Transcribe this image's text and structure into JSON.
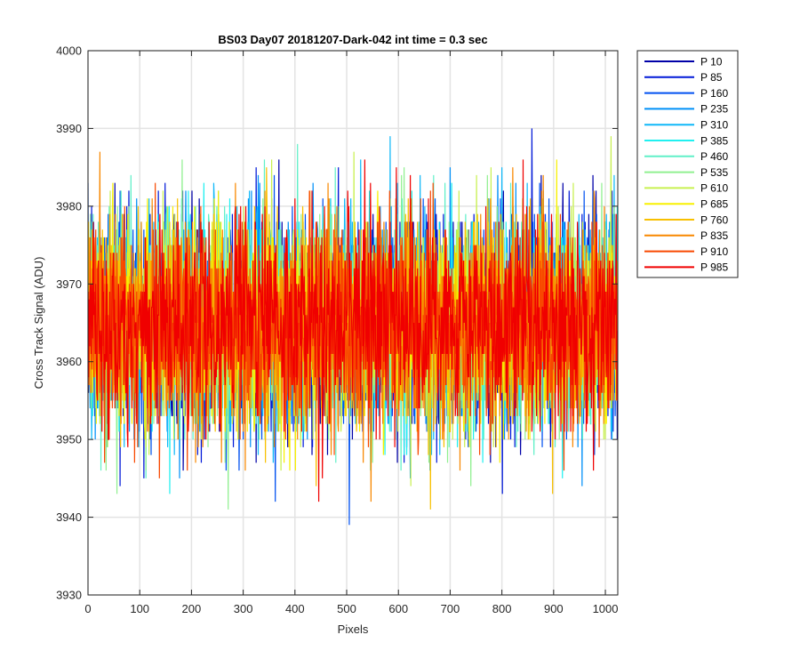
{
  "chart_data": {
    "type": "line",
    "title": "BS03 Day07 20181207-Dark-042 int time = 0.3 sec",
    "xlabel": "Pixels",
    "ylabel": "Cross Track Signal (ADU)",
    "xlim": [
      0,
      1024
    ],
    "ylim": [
      3930,
      4000
    ],
    "xticks": [
      0,
      100,
      200,
      300,
      400,
      500,
      600,
      700,
      800,
      900,
      1000
    ],
    "yticks": [
      3930,
      3940,
      3950,
      3960,
      3970,
      3980,
      3990,
      4000
    ],
    "grid": true,
    "legend_position": "outside-top-right",
    "noise": {
      "mean": 3965,
      "std": 6.5,
      "min": 3935,
      "max": 3997,
      "n_points": 1024
    },
    "series": [
      {
        "name": "P 10",
        "color": "#0000a8"
      },
      {
        "name": "P 85",
        "color": "#0018d8"
      },
      {
        "name": "P 160",
        "color": "#0050f0"
      },
      {
        "name": "P 235",
        "color": "#0090f8"
      },
      {
        "name": "P 310",
        "color": "#10b8f8"
      },
      {
        "name": "P 385",
        "color": "#20f0f0"
      },
      {
        "name": "P 460",
        "color": "#60f0c8"
      },
      {
        "name": "P 535",
        "color": "#90f090"
      },
      {
        "name": "P 610",
        "color": "#c8f050"
      },
      {
        "name": "P 685",
        "color": "#f8f000"
      },
      {
        "name": "P 760",
        "color": "#f8c000"
      },
      {
        "name": "P 835",
        "color": "#f88800"
      },
      {
        "name": "P 910",
        "color": "#f84800"
      },
      {
        "name": "P 985",
        "color": "#f00000"
      }
    ]
  }
}
